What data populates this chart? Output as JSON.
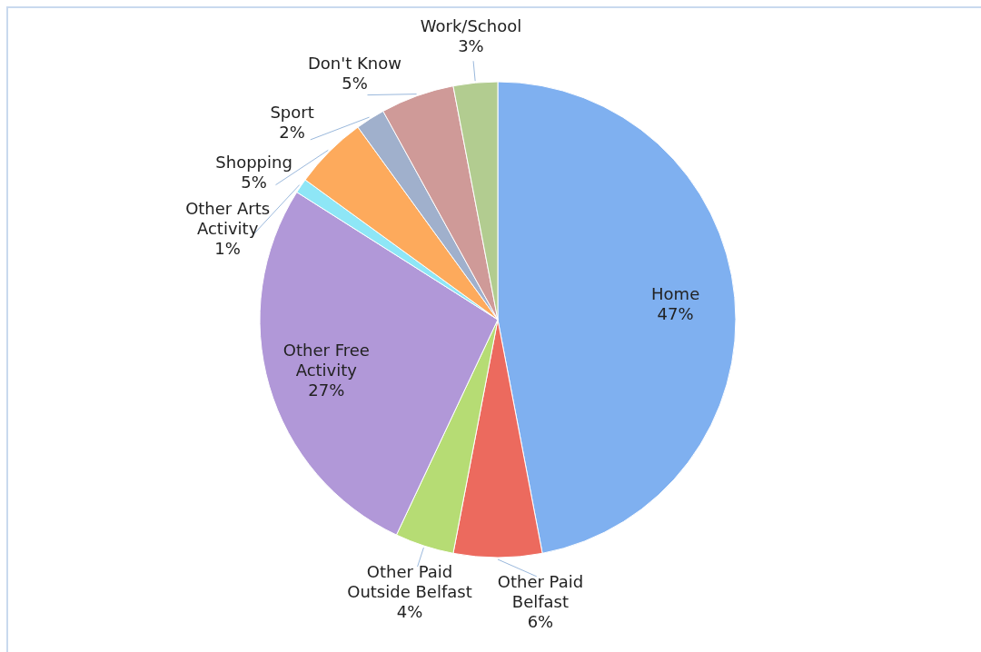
{
  "chart_data": {
    "type": "pie",
    "categories": [
      "Home",
      "Other Paid Belfast",
      "Other Paid Outside Belfast",
      "Other Free Activity",
      "Other Arts Activity",
      "Shopping",
      "Sport",
      "Don't Know",
      "Work/School"
    ],
    "values": [
      47,
      6,
      4,
      27,
      1,
      5,
      2,
      5,
      3
    ],
    "colors": [
      "#7fb0f0",
      "#ec6a5e",
      "#b6dc74",
      "#b198d8",
      "#8ee6f6",
      "#fdaa5c",
      "#a0b0cc",
      "#cf9a98",
      "#b2cc90"
    ],
    "value_labels": [
      "47%",
      "6%",
      "4%",
      "27%",
      "1%",
      "5%",
      "2%",
      "5%",
      "3%"
    ]
  }
}
